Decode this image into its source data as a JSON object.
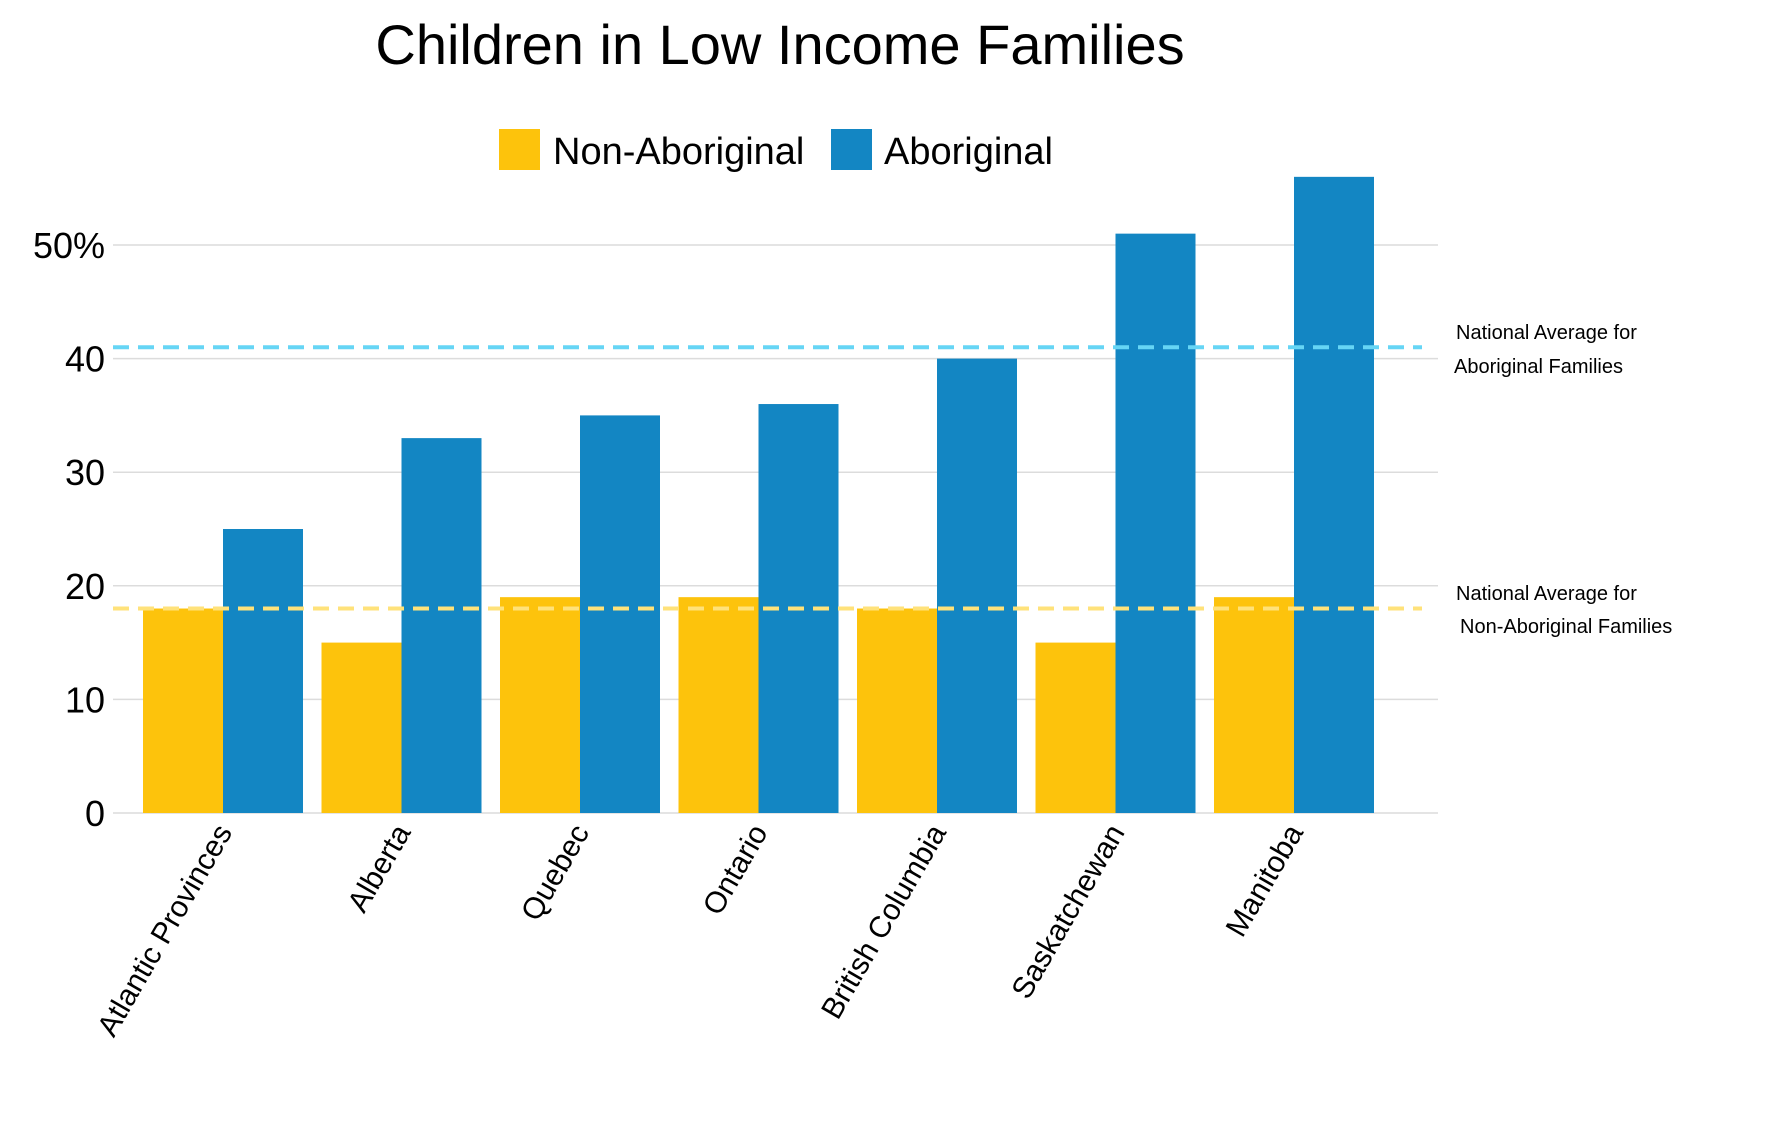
{
  "chart_data": {
    "type": "bar",
    "title": "Children in Low Income Families",
    "categories": [
      "Atlantic Provinces",
      "Alberta",
      "Quebec",
      "Ontario",
      "British Columbia",
      "Saskatchewan",
      "Manitoba"
    ],
    "series": [
      {
        "name": "Non-Aboriginal",
        "color": "#FDC30C",
        "values": [
          18,
          15,
          19,
          19,
          18,
          15,
          19
        ]
      },
      {
        "name": "Aboriginal",
        "color": "#1386C3",
        "values": [
          25,
          33,
          35,
          36,
          40,
          51,
          56
        ]
      }
    ],
    "y_ticks": [
      {
        "value": 0,
        "label": "0"
      },
      {
        "value": 10,
        "label": "10"
      },
      {
        "value": 20,
        "label": "20"
      },
      {
        "value": 30,
        "label": "30"
      },
      {
        "value": 40,
        "label": "40"
      },
      {
        "value": 50,
        "label": "50%"
      }
    ],
    "ylim": [
      0,
      56
    ],
    "grid": true,
    "legend_position": "top-center",
    "reference_lines": [
      {
        "value": 41,
        "color": "#66D5F5",
        "label_line1": "National Average for",
        "label_line2": "Aboriginal Families"
      },
      {
        "value": 18,
        "color": "#FFE27A",
        "label_line1": "National Average for",
        "label_line2": "Non-Aboriginal Families"
      }
    ],
    "xlabel": "",
    "ylabel": ""
  }
}
